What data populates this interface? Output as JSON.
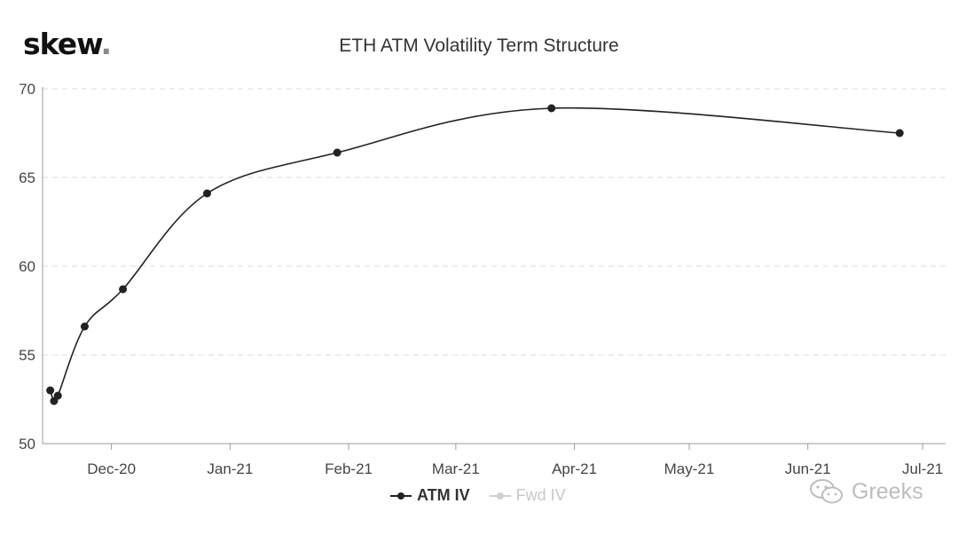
{
  "logo": {
    "text": "skew",
    "dot": "."
  },
  "watermark": {
    "text": "Greeks",
    "icon": "wechat-icon"
  },
  "chart_data": {
    "type": "line",
    "title": "ETH ATM Volatility Term Structure",
    "xlabel": "",
    "ylabel": "",
    "ylim": [
      50,
      70
    ],
    "yticks": [
      50,
      55,
      60,
      65,
      70
    ],
    "xlim": [
      "2020-11-13",
      "2021-07-07"
    ],
    "xticks": [
      {
        "date": "2020-12-01",
        "label": "Dec-20"
      },
      {
        "date": "2021-01-01",
        "label": "Jan-21"
      },
      {
        "date": "2021-02-01",
        "label": "Feb-21"
      },
      {
        "date": "2021-03-01",
        "label": "Mar-21"
      },
      {
        "date": "2021-04-01",
        "label": "Apr-21"
      },
      {
        "date": "2021-05-01",
        "label": "May-21"
      },
      {
        "date": "2021-06-01",
        "label": "Jun-21"
      },
      {
        "date": "2021-07-01",
        "label": "Jul-21"
      }
    ],
    "grid": {
      "horizontal": true,
      "vertical": false
    },
    "legend_position": "bottom-center",
    "series": [
      {
        "name": "ATM IV",
        "color": "#222222",
        "visible": true,
        "points": [
          {
            "x": "2020-11-15",
            "y": 53.0
          },
          {
            "x": "2020-11-16",
            "y": 52.4
          },
          {
            "x": "2020-11-17",
            "y": 52.7
          },
          {
            "x": "2020-11-24",
            "y": 56.6
          },
          {
            "x": "2020-12-04",
            "y": 58.7
          },
          {
            "x": "2020-12-26",
            "y": 64.1
          },
          {
            "x": "2021-01-29",
            "y": 66.4
          },
          {
            "x": "2021-03-26",
            "y": 68.9
          },
          {
            "x": "2021-06-25",
            "y": 67.5
          }
        ]
      },
      {
        "name": "Fwd IV",
        "color": "#cccccc",
        "visible": false,
        "points": []
      }
    ]
  }
}
